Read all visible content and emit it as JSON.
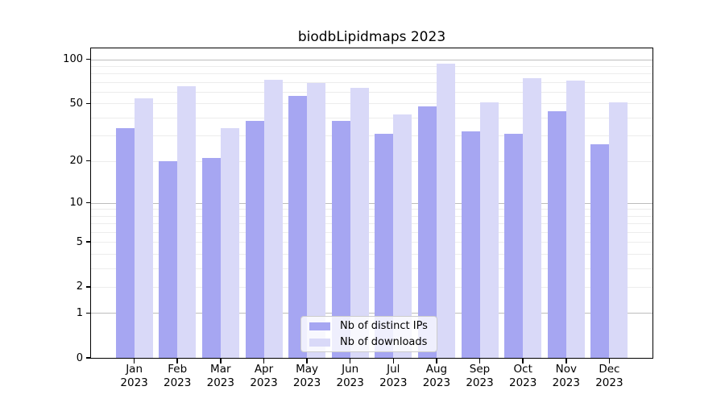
{
  "chart_data": {
    "type": "bar",
    "title": "biodbLipidmaps 2023",
    "xlabel": "",
    "ylabel": "",
    "year": "2023",
    "categories": [
      "Jan",
      "Feb",
      "Mar",
      "Apr",
      "May",
      "Jun",
      "Jul",
      "Aug",
      "Sep",
      "Oct",
      "Nov",
      "Dec"
    ],
    "series": [
      {
        "name": "Nb of distinct IPs",
        "color": "#a6a6f2",
        "values": [
          34,
          20,
          21,
          38,
          56,
          38,
          31,
          48,
          32,
          31,
          44,
          26
        ]
      },
      {
        "name": "Nb of downloads",
        "color": "#d9d9f8",
        "values": [
          54,
          66,
          34,
          73,
          69,
          64,
          42,
          93,
          51,
          74,
          72,
          51
        ]
      }
    ],
    "yscale": "log10(1+y)",
    "ylim": [
      0,
      118.5
    ],
    "yticks": [
      0,
      1,
      2,
      5,
      10,
      20,
      50,
      100
    ],
    "major_gridlines": [
      1,
      10,
      100
    ],
    "minor_gridlines": [
      2,
      3,
      4,
      5,
      6,
      7,
      8,
      9,
      20,
      30,
      40,
      50,
      60,
      70,
      80,
      90
    ],
    "grid": true,
    "legend_position": "lower center",
    "colors": {
      "background": "#ffffff",
      "axis": "#000000",
      "major_grid": "#bdbdbd",
      "minor_grid": "#ececec",
      "legend_border": "#cccccc"
    }
  }
}
